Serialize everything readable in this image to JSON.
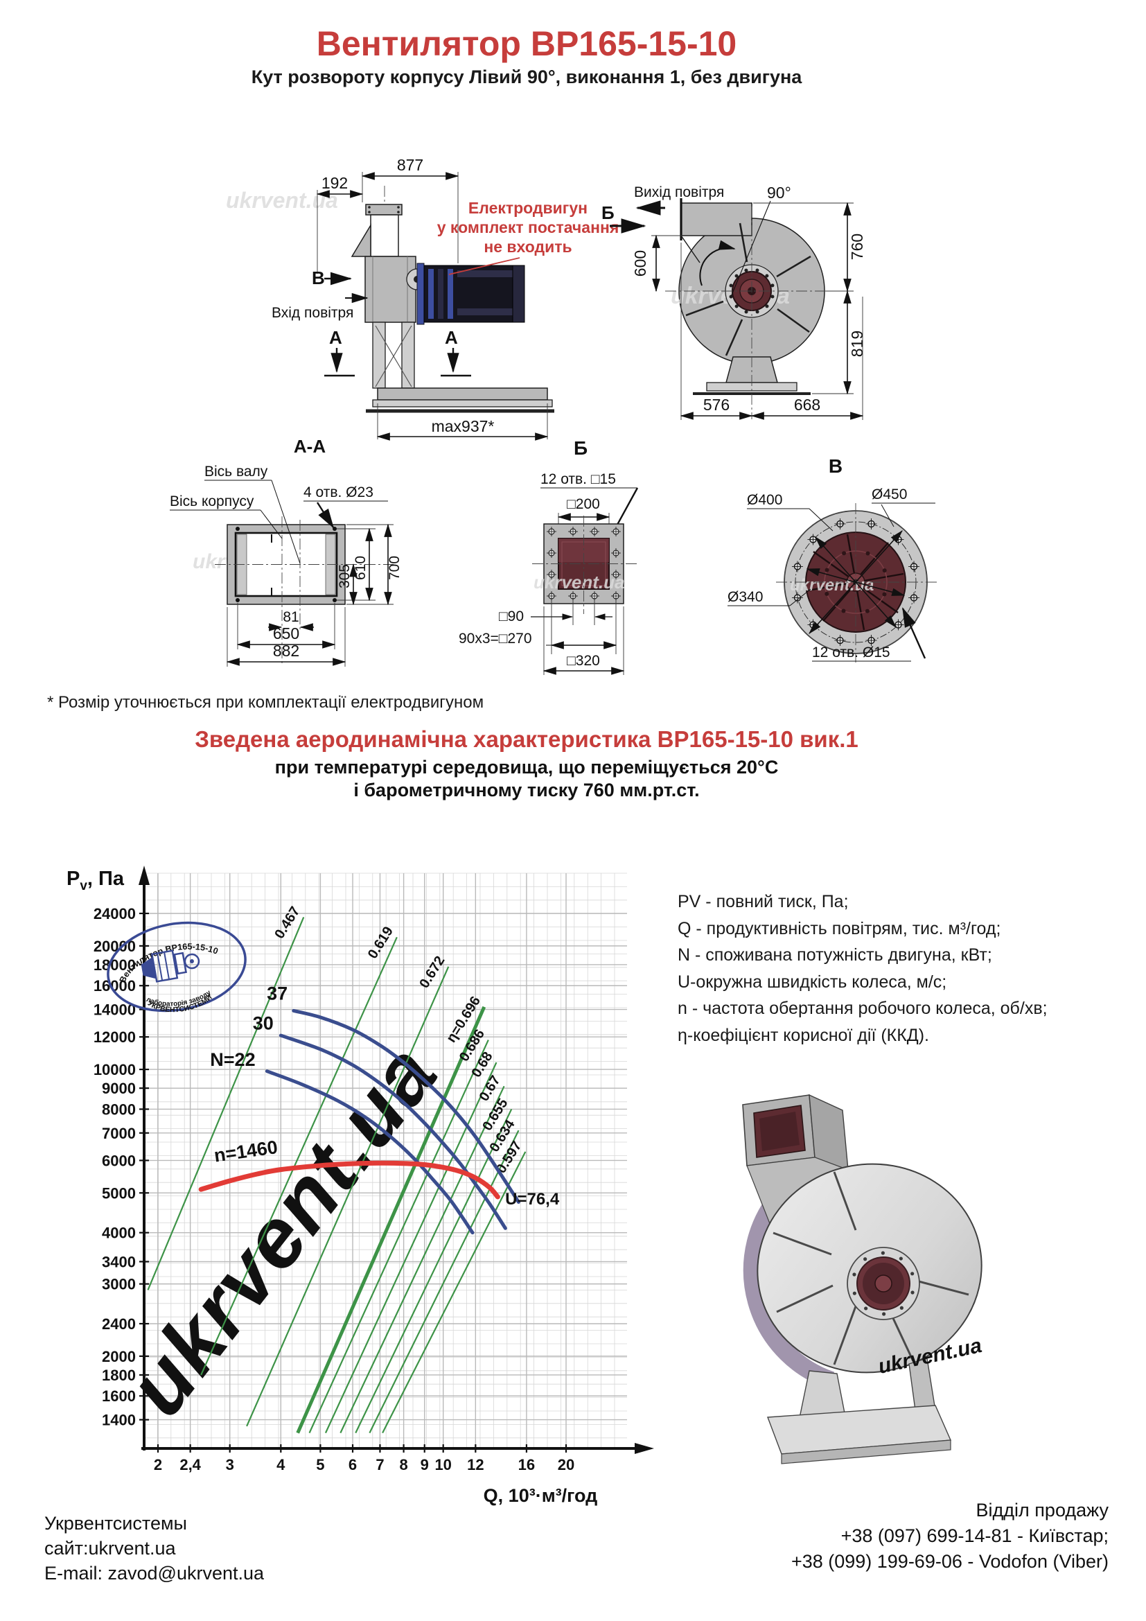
{
  "header": {
    "title": "Вентилятор ВР165-15-10",
    "subtitle": "Кут розвороту корпусу Лівий 90°, виконання 1, без двигуна"
  },
  "side_view": {
    "dim_877": "877",
    "dim_192": "192",
    "dim_max937": "max937*",
    "label_v": "В",
    "label_a1": "А",
    "label_a2": "А",
    "air_inlet": "Вхід повітря",
    "motor_note1": "Електродвигун",
    "motor_note2": "у комплект постачання",
    "motor_note3": "не входить"
  },
  "front_view": {
    "air_outlet": "Вихід повітря",
    "angle_90": "90°",
    "label_b": "Б",
    "dim_600": "600",
    "dim_760": "760",
    "dim_819": "819",
    "dim_576": "576",
    "dim_668": "668"
  },
  "section_aa": {
    "title": "А-А",
    "axis_shaft": "Вісь валу",
    "axis_body": "Вісь корпусу",
    "holes_note": "4 отв. Ø23",
    "dim_305": "305",
    "dim_610": "610",
    "dim_700": "700",
    "dim_81": "81",
    "dim_650": "650",
    "dim_882": "882"
  },
  "view_b": {
    "title": "Б",
    "holes_note": "12 отв. □15",
    "dim_200": "□200",
    "dim_90": "□90",
    "dim_270": "90x3=□270",
    "dim_320": "□320"
  },
  "view_v": {
    "title": "В",
    "dim_400": "Ø400",
    "dim_450": "Ø450",
    "dim_340": "Ø340",
    "holes_note": "12 отв. Ø15"
  },
  "footnote": "* Розмір уточнюється при комплектації електродвигуном",
  "chart_section": {
    "title": "Зведена аеродинамічна характеристика ВР165-15-10 вик.1",
    "subtitle1": "при температурі середовища, що переміщується 20°С",
    "subtitle2": "і барометричному тиску 760 мм.рт.ст."
  },
  "chart_data": {
    "type": "line",
    "scale": "log-log",
    "xlabel": "Q, 10³·м³/год",
    "ylabel_main": "P",
    "ylabel_sub": "v",
    "ylabel_rest": ", Па",
    "x_range": [
      1.85,
      28
    ],
    "y_range": [
      1190,
      30000
    ],
    "grid": "on",
    "x_ticks": [
      2,
      2.4,
      3,
      4,
      5,
      6,
      7,
      8,
      9,
      10,
      12,
      16,
      20
    ],
    "x_tick_labels": [
      "2",
      "2,4",
      "3",
      "4",
      "5",
      "6",
      "7",
      "8",
      "9",
      "10",
      "12",
      "16",
      "20"
    ],
    "y_ticks": [
      24000,
      20000,
      18000,
      16000,
      14000,
      12000,
      10000,
      9000,
      8000,
      7000,
      6000,
      5000,
      4000,
      3400,
      3000,
      2400,
      2000,
      1800,
      1600,
      1400
    ],
    "series": [
      {
        "name": "37",
        "color": "#3a4d8e",
        "width": 5,
        "label_at": [
          3.92,
          14800
        ],
        "points": [
          [
            4.3,
            13900
          ],
          [
            5,
            13400
          ],
          [
            6,
            12500
          ],
          [
            7,
            11450
          ],
          [
            8,
            10400
          ],
          [
            9,
            9400
          ],
          [
            10,
            8500
          ],
          [
            11,
            7650
          ],
          [
            12,
            6850
          ],
          [
            13,
            6100
          ],
          [
            14,
            5450
          ],
          [
            15.3,
            4750
          ]
        ]
      },
      {
        "name": "30",
        "color": "#3a4d8e",
        "width": 5,
        "label_at": [
          3.62,
          12500
        ],
        "points": [
          [
            4.0,
            12100
          ],
          [
            5,
            11200
          ],
          [
            6,
            10250
          ],
          [
            7,
            9250
          ],
          [
            8,
            8300
          ],
          [
            9,
            7400
          ],
          [
            10,
            6600
          ],
          [
            11,
            5900
          ],
          [
            12,
            5250
          ],
          [
            13,
            4700
          ],
          [
            14.2,
            4100
          ]
        ]
      },
      {
        "name": "N=22",
        "color": "#3a4d8e",
        "width": 5,
        "label_at": [
          3.05,
          10200
        ],
        "points": [
          [
            3.7,
            9900
          ],
          [
            4.5,
            9200
          ],
          [
            5.5,
            8400
          ],
          [
            6.5,
            7600
          ],
          [
            7.5,
            6800
          ],
          [
            8.5,
            6050
          ],
          [
            9.5,
            5350
          ],
          [
            10.5,
            4750
          ],
          [
            11.8,
            4000
          ]
        ]
      },
      {
        "name": "n=1460",
        "color": "#e23b36",
        "width": 7,
        "label_at": [
          3.3,
          6100
        ],
        "label_rotate": -8,
        "end_label": "U=76,4",
        "end_label_at": [
          13.75,
          4830
        ],
        "points": [
          [
            2.55,
            5100
          ],
          [
            3,
            5350
          ],
          [
            3.5,
            5560
          ],
          [
            4,
            5700
          ],
          [
            5,
            5830
          ],
          [
            6,
            5890
          ],
          [
            7,
            5910
          ],
          [
            8,
            5900
          ],
          [
            9,
            5860
          ],
          [
            10,
            5770
          ],
          [
            11,
            5640
          ],
          [
            12,
            5440
          ],
          [
            13,
            5150
          ],
          [
            13.6,
            4890
          ]
        ]
      }
    ],
    "eta_lines": [
      {
        "label": "0.467",
        "from": [
          1.89,
          2900
        ],
        "to": [
          4.55,
          23500
        ]
      },
      {
        "label": "0.619",
        "from": [
          2.55,
          1800
        ],
        "to": [
          7.7,
          21000
        ]
      },
      {
        "label": "0.672",
        "from": [
          3.3,
          1350
        ],
        "to": [
          10.3,
          17800
        ]
      },
      {
        "label": "η=0.696",
        "from": [
          4.4,
          1300
        ],
        "to": [
          12.6,
          14200
        ],
        "thick": true
      },
      {
        "label": "0.686",
        "from": [
          4.7,
          1300
        ],
        "to": [
          12.9,
          11800
        ]
      },
      {
        "label": "0.68",
        "from": [
          5.15,
          1300
        ],
        "to": [
          13.5,
          10400
        ]
      },
      {
        "label": "0.67",
        "from": [
          5.6,
          1300
        ],
        "to": [
          14.1,
          9100
        ]
      },
      {
        "label": "0.655",
        "from": [
          6.1,
          1300
        ],
        "to": [
          14.7,
          8000
        ]
      },
      {
        "label": "0.634",
        "from": [
          6.6,
          1300
        ],
        "to": [
          15.3,
          7100
        ]
      },
      {
        "label": "0.597",
        "from": [
          7.1,
          1300
        ],
        "to": [
          15.9,
          6300
        ]
      }
    ]
  },
  "legend": {
    "lines": [
      "PV - повний тиск, Па;",
      "Q - продуктивність повітрям, тис. м³/год;",
      "N - споживана потужність двигуна, кВт;",
      "U-окружна швидкість колеса, м/с;",
      "n - частота обертання робочого колеса, об/хв;",
      "η-коефіцієнт корисної дії (ККД)."
    ]
  },
  "stamp": {
    "top": "Вентилятор ВР165-15-10",
    "mid": "лабораторія заводу",
    "bottom": "УКРВЕНТСИСТЕМИ"
  },
  "watermark": "ukrvent.ua",
  "footer": {
    "company": "Укрвентсистемы",
    "site": "сайт:ukrvent.ua",
    "email": "E-mail: zavod@ukrvent.ua",
    "sales_title": "Відділ продажу",
    "phone1": "+38 (097) 699-14-81 - Київстар;",
    "phone2": "+38 (099) 199-69-06 - Vodofon (Viber)"
  }
}
